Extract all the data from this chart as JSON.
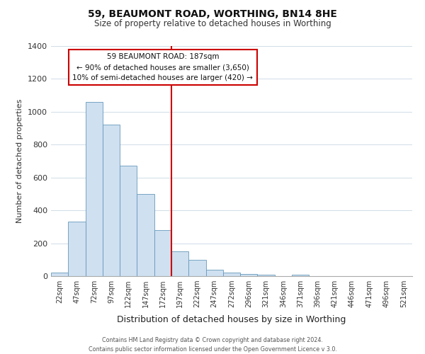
{
  "title": "59, BEAUMONT ROAD, WORTHING, BN14 8HE",
  "subtitle": "Size of property relative to detached houses in Worthing",
  "xlabel": "Distribution of detached houses by size in Worthing",
  "ylabel": "Number of detached properties",
  "bar_labels": [
    "22sqm",
    "47sqm",
    "72sqm",
    "97sqm",
    "122sqm",
    "147sqm",
    "172sqm",
    "197sqm",
    "222sqm",
    "247sqm",
    "272sqm",
    "296sqm",
    "321sqm",
    "346sqm",
    "371sqm",
    "396sqm",
    "421sqm",
    "446sqm",
    "471sqm",
    "496sqm",
    "521sqm"
  ],
  "bar_values": [
    20,
    330,
    1060,
    920,
    670,
    500,
    280,
    150,
    100,
    38,
    20,
    13,
    8,
    0,
    10,
    0,
    0,
    0,
    0,
    0,
    0
  ],
  "bar_color": "#cfe0f0",
  "bar_edge_color": "#6699bb",
  "vline_color": "#cc0000",
  "annotation_line1": "59 BEAUMONT ROAD: 187sqm",
  "annotation_line2": "← 90% of detached houses are smaller (3,650)",
  "annotation_line3": "10% of semi-detached houses are larger (420) →",
  "ylim": [
    0,
    1400
  ],
  "yticks": [
    0,
    200,
    400,
    600,
    800,
    1000,
    1200,
    1400
  ],
  "footer_line1": "Contains HM Land Registry data © Crown copyright and database right 2024.",
  "footer_line2": "Contains public sector information licensed under the Open Government Licence v 3.0.",
  "bg_color": "#ffffff",
  "grid_color": "#d0dce8"
}
